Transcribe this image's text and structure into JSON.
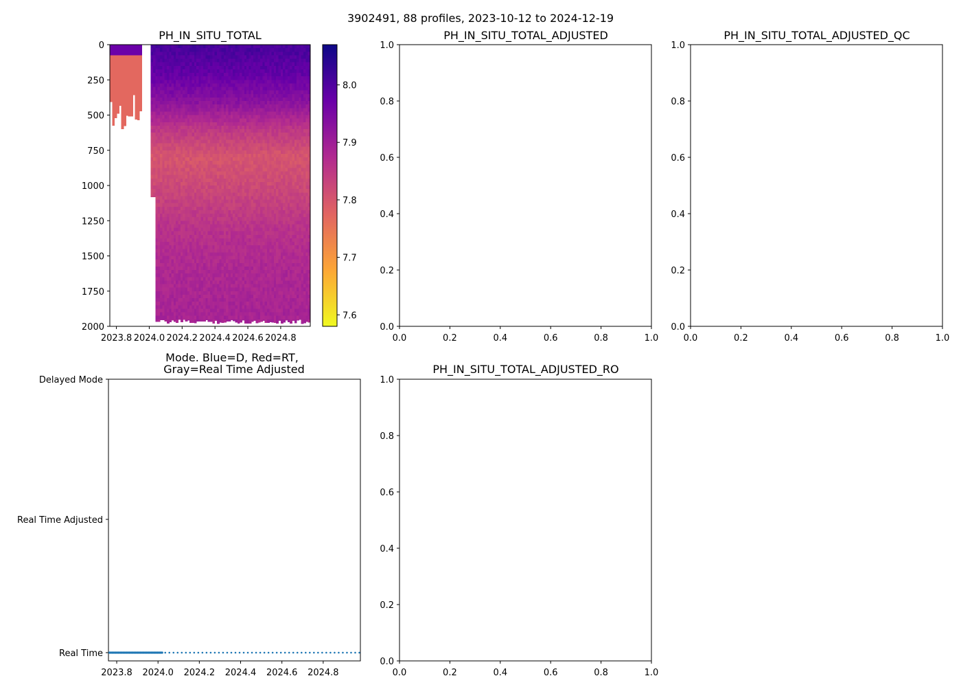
{
  "figure_title": "3902491, 88 profiles, 2023-10-12 to 2024-12-19",
  "colors": {
    "mode_points": "#1f77b4",
    "axes": "#000000",
    "colormap": [
      "#f0f921",
      "#fca636",
      "#e16462",
      "#b12a90",
      "#6a00a8",
      "#0d0887"
    ]
  },
  "chart_data": [
    {
      "id": "ph",
      "type": "heatmap",
      "title": "PH_IN_SITU_TOTAL",
      "xlabel": "",
      "ylabel": "",
      "xlim": [
        2023.76,
        2024.98
      ],
      "ylim": [
        2000,
        0
      ],
      "xticks": [
        2023.8,
        2024.0,
        2024.2,
        2024.4,
        2024.6,
        2024.8
      ],
      "xticklabels": [
        "2023.8",
        "2024.0",
        "2024.2",
        "2024.4",
        "2024.6",
        "2024.8"
      ],
      "yticks": [
        0,
        250,
        500,
        750,
        1000,
        1250,
        1500,
        1750,
        2000
      ],
      "yticklabels": [
        "0",
        "250",
        "500",
        "750",
        "1000",
        "1250",
        "1500",
        "1750",
        "2000"
      ],
      "colorbar": {
        "range": [
          7.58,
          8.07
        ],
        "ticks": [
          7.6,
          7.7,
          7.8,
          7.9,
          8.0
        ],
        "ticklabels": [
          "7.6",
          "7.7",
          "7.8",
          "7.9",
          "8.0"
        ]
      },
      "profile_times": [
        2023.78,
        2024.18,
        2024.18,
        2024.98
      ],
      "profile_max_depth": [
        650,
        430,
        1080,
        1980
      ],
      "ph_vs_depth": [
        {
          "depth": 0,
          "ph": 8.01
        },
        {
          "depth": 200,
          "ph": 7.98
        },
        {
          "depth": 400,
          "ph": 7.93
        },
        {
          "depth": 600,
          "ph": 7.85
        },
        {
          "depth": 800,
          "ph": 7.8
        },
        {
          "depth": 1000,
          "ph": 7.82
        },
        {
          "depth": 1300,
          "ph": 7.86
        },
        {
          "depth": 1600,
          "ph": 7.88
        },
        {
          "depth": 2000,
          "ph": 7.89
        }
      ],
      "early_profiles_ph": 7.77
    },
    {
      "id": "adj",
      "type": "line",
      "title": "PH_IN_SITU_TOTAL_ADJUSTED",
      "xlim": [
        0,
        1
      ],
      "ylim": [
        0,
        1
      ],
      "xticklabels": [
        "0.0",
        "0.2",
        "0.4",
        "0.6",
        "0.8",
        "1.0"
      ],
      "yticklabels": [
        "0.0",
        "0.2",
        "0.4",
        "0.6",
        "0.8",
        "1.0"
      ],
      "series": []
    },
    {
      "id": "qc",
      "type": "line",
      "title": "PH_IN_SITU_TOTAL_ADJUSTED_QC",
      "xlim": [
        0,
        1
      ],
      "ylim": [
        0,
        1
      ],
      "xticklabels": [
        "0.0",
        "0.2",
        "0.4",
        "0.6",
        "0.8",
        "1.0"
      ],
      "yticklabels": [
        "0.0",
        "0.2",
        "0.4",
        "0.6",
        "0.8",
        "1.0"
      ],
      "series": []
    },
    {
      "id": "mode",
      "type": "scatter",
      "title_line1": "Mode. Blue=D, Red=RT,",
      "title_line2": "Gray=Real Time Adjusted",
      "xlim": [
        2023.76,
        2024.98
      ],
      "xticks": [
        2023.8,
        2024.0,
        2024.2,
        2024.4,
        2024.6,
        2024.8
      ],
      "xticklabels": [
        "2023.8",
        "2024.0",
        "2024.2",
        "2024.4",
        "2024.6",
        "2024.8"
      ],
      "ycategories": [
        "Real Time",
        "Real Time Adjusted",
        "Delayed Mode"
      ],
      "series": [
        {
          "name": "Real Time",
          "y": 0,
          "x_dense": {
            "start": 2023.76,
            "end": 2024.02,
            "count": 60
          },
          "x_sparse": {
            "start": 2024.035,
            "end": 2024.975,
            "step": 0.02
          }
        }
      ]
    },
    {
      "id": "ro",
      "type": "line",
      "title": "PH_IN_SITU_TOTAL_ADJUSTED_RO",
      "xlim": [
        0,
        1
      ],
      "ylim": [
        0,
        1
      ],
      "xticklabels": [
        "0.0",
        "0.2",
        "0.4",
        "0.6",
        "0.8",
        "1.0"
      ],
      "yticklabels": [
        "0.0",
        "0.2",
        "0.4",
        "0.6",
        "0.8",
        "1.0"
      ],
      "series": []
    }
  ]
}
